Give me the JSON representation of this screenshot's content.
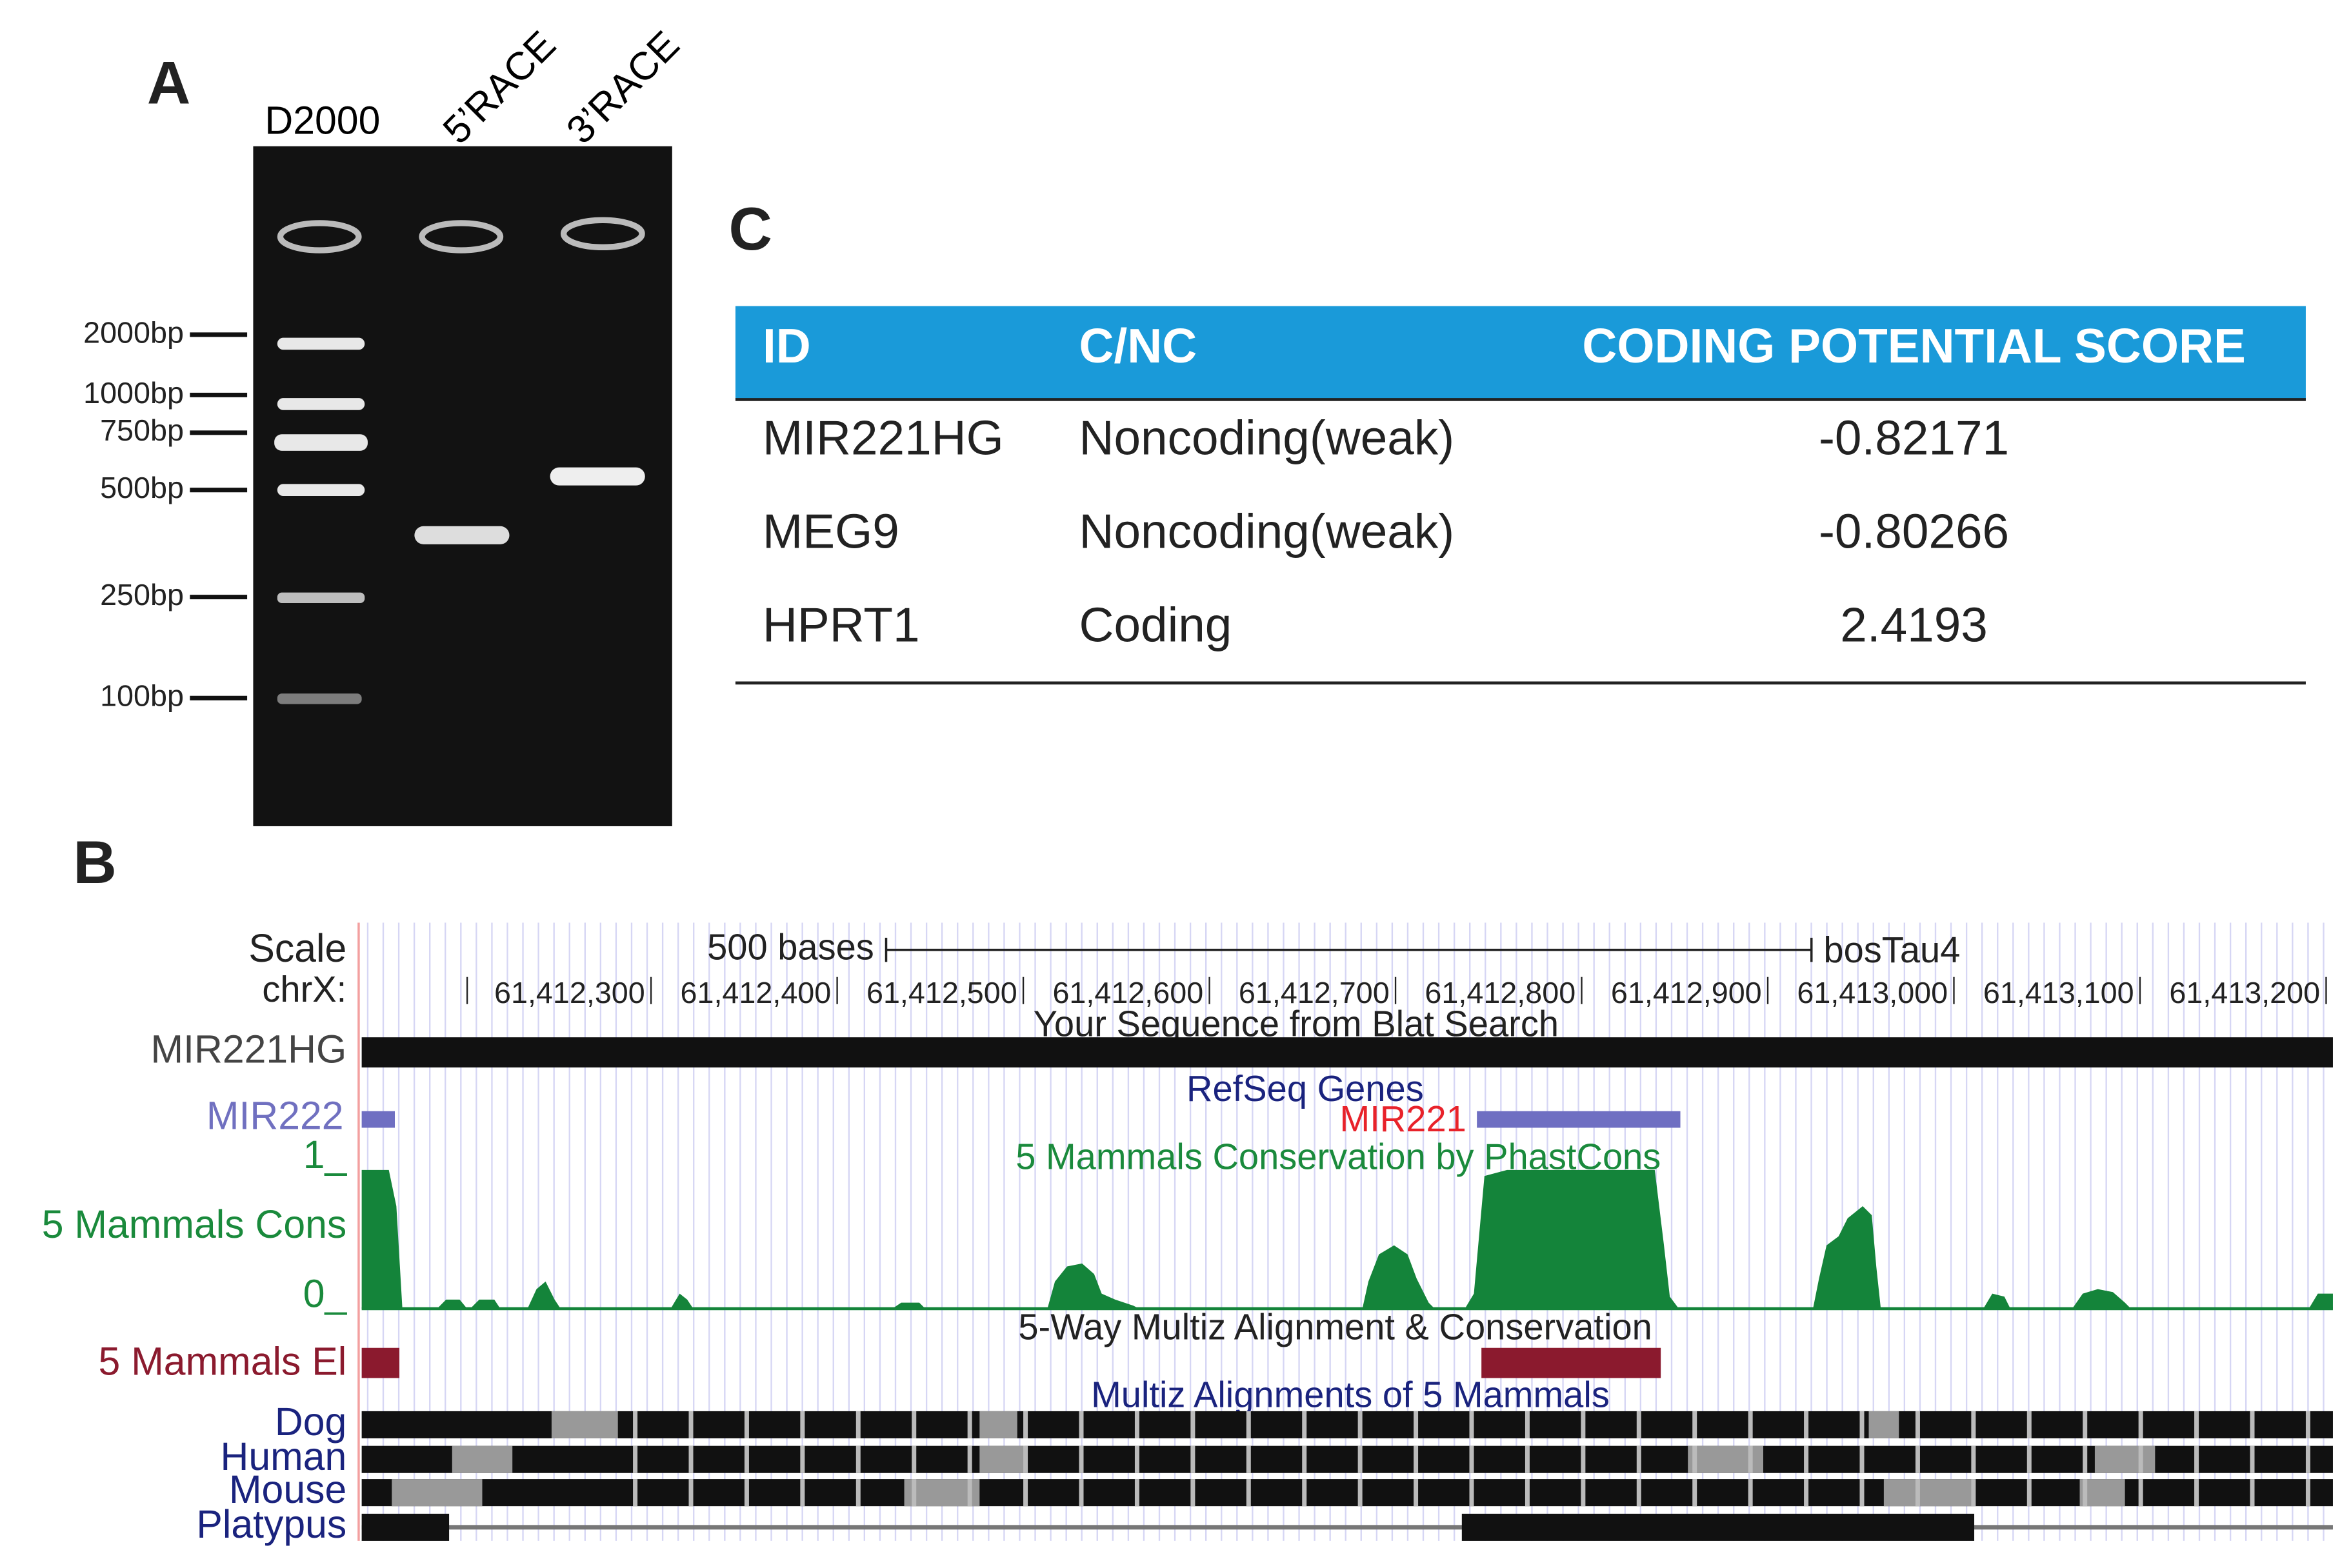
{
  "panels": {
    "A": {
      "label": "A",
      "lanes": [
        "D2000",
        "5’RACE",
        "3’RACE"
      ],
      "markers": [
        "2000bp",
        "1000bp",
        "750bp",
        "500bp",
        "250bp",
        "100bp"
      ]
    },
    "C": {
      "label": "C",
      "table": {
        "header": [
          "ID",
          "C/NC",
          "CODING POTENTIAL SCORE"
        ],
        "rows": [
          [
            "MIR221HG",
            "Noncoding(weak)",
            -0.82171
          ],
          [
            "MEG9",
            "Noncoding(weak)",
            -0.80266
          ],
          [
            "HPRT1",
            "Coding",
            2.4193
          ]
        ]
      }
    },
    "B": {
      "label": "B",
      "scale": "Scale",
      "scale_text": "500 bases",
      "assembly": "bosTau4",
      "chrom": "chrX:",
      "positions": [
        "61,412,300",
        "61,412,400",
        "61,412,500",
        "61,412,600",
        "61,412,700",
        "61,412,800",
        "61,412,900",
        "61,413,000",
        "61,413,100",
        "61,413,200"
      ],
      "blat": {
        "title": "Your Sequence from Blat Search",
        "label": "MIR221HG"
      },
      "refseq": {
        "title": "RefSeq Genes",
        "label": "MIR222",
        "gene": "MIR221"
      },
      "cons": {
        "title": "5 Mammals Conservation by PhastCons",
        "label": "5 Mammals Cons",
        "top": "1_",
        "bottom": "0_"
      },
      "multiz": {
        "title": "5-Way Multiz Alignment & Conservation",
        "label": "5 Mammals El"
      },
      "align": {
        "title": "Multiz Alignments of 5 Mammals",
        "species": [
          "Dog",
          "Human",
          "Mouse",
          "Platypus"
        ]
      }
    }
  }
}
